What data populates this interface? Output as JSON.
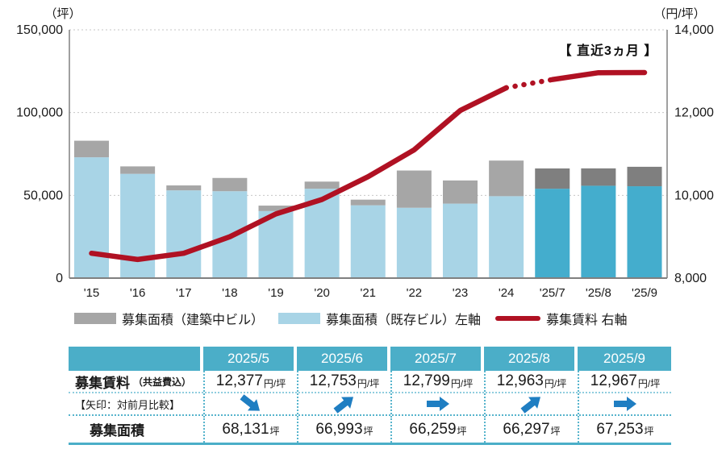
{
  "colors": {
    "existing_bar": "#A8D4E6",
    "existing_bar_recent": "#44ADCD",
    "construction_bar": "#A6A6A6",
    "construction_bar_recent": "#7F7F7F",
    "rent_line": "#B01123",
    "table_header": "#4BAEC8",
    "arrow_blue": "#1F7EC2",
    "grid": "#C6C6C6",
    "axis": "#808080",
    "text": "#1A1A1A"
  },
  "chart_data": {
    "type": "combo-bar-line",
    "categories": [
      "'15",
      "'16",
      "'17",
      "'18",
      "'19",
      "'20",
      "'21",
      "'22",
      "'23",
      "'24",
      "'25/7",
      "'25/8",
      "'25/9"
    ],
    "series": [
      {
        "name": "募集面積（既存ビル）左軸",
        "type": "bar",
        "stack": "area",
        "axis": "left",
        "values": [
          73000,
          63000,
          53000,
          52500,
          40500,
          54000,
          44000,
          42500,
          45000,
          49500,
          54000,
          55800,
          55500
        ]
      },
      {
        "name": "募集面積（建築中ビル）",
        "type": "bar",
        "stack": "area",
        "axis": "left",
        "values": [
          10000,
          4500,
          3000,
          8000,
          3300,
          4300,
          3400,
          22500,
          14000,
          21500,
          12259,
          10497,
          11753
        ]
      },
      {
        "name": "募集賃料 右軸",
        "type": "line",
        "axis": "right",
        "values": [
          8600,
          8450,
          8600,
          9000,
          9550,
          9900,
          10450,
          11100,
          12050,
          12600,
          12799,
          12963,
          12967
        ]
      }
    ],
    "left_axis": {
      "unit": "（坪）",
      "tick_labels": [
        "150,000",
        "100,000",
        "50,000",
        "0"
      ],
      "min": 0,
      "max": 150000
    },
    "right_axis": {
      "unit": "（円/坪）",
      "tick_labels": [
        "14,000",
        "12,000",
        "10,000",
        "8,000"
      ],
      "min": 8000,
      "max": 14000
    },
    "annotation": "【 直近3ヵ月 】",
    "dotted_line_segment": {
      "from_category": "'24",
      "to_category": "'25/7"
    },
    "recent_bars_start_index": 10,
    "grid": "dotted-horizontal",
    "legend_position": "bottom"
  },
  "legend": {
    "items": [
      {
        "swatch": "bar",
        "color_key": "construction_bar",
        "label": "募集面積（建築中ビル）"
      },
      {
        "swatch": "bar",
        "color_key": "existing_bar",
        "label": "募集面積（既存ビル）左軸"
      },
      {
        "swatch": "line",
        "color_key": "rent_line",
        "label": "募集賃料 右軸"
      }
    ]
  },
  "table": {
    "column_headers": [
      "2025/5",
      "2025/6",
      "2025/7",
      "2025/8",
      "2025/9"
    ],
    "rent_row": {
      "label": "募集賃料",
      "label_sub": "（共益費込）",
      "unit": "円/坪",
      "values": [
        "12,377",
        "12,753",
        "12,799",
        "12,963",
        "12,967"
      ]
    },
    "arrow_row": {
      "label": "【矢印：対前月比較】",
      "directions": [
        "down",
        "up",
        "right",
        "up",
        "right"
      ]
    },
    "area_row": {
      "label": "募集面積",
      "unit": "坪",
      "values": [
        "68,131",
        "66,993",
        "66,259",
        "66,297",
        "67,253"
      ]
    }
  }
}
